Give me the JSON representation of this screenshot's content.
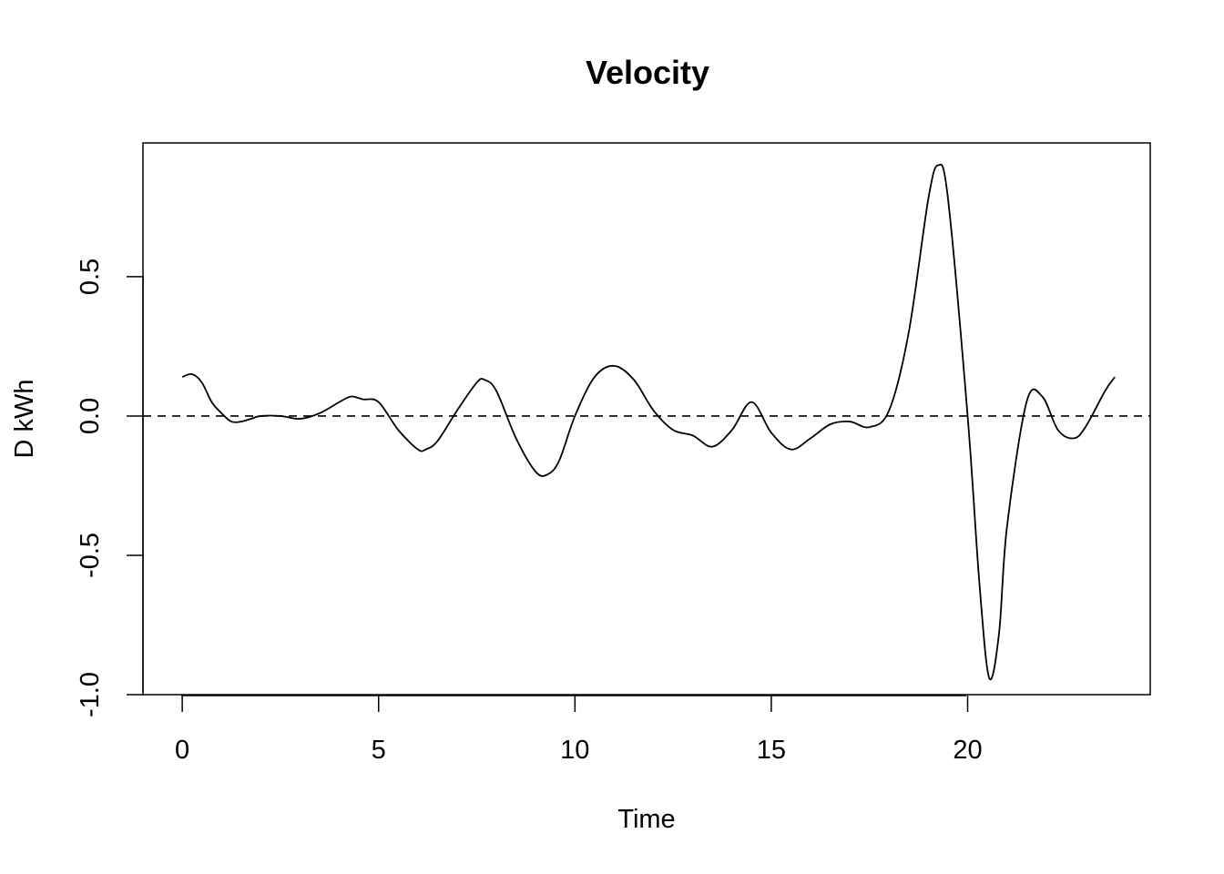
{
  "chart_data": {
    "type": "line",
    "title": "Velocity",
    "xlabel": "Time",
    "ylabel": "D kWh",
    "xlim": [
      -1,
      24.65
    ],
    "ylim": [
      -1.0,
      0.98
    ],
    "x_ticks": [
      0,
      5,
      10,
      15,
      20
    ],
    "x_tick_labels": [
      "0",
      "5",
      "10",
      "15",
      "20"
    ],
    "y_ticks": [
      -1.0,
      -0.5,
      0.0,
      0.5
    ],
    "y_tick_labels": [
      "-1.0",
      "-0.5",
      "0.0",
      "0.5"
    ],
    "grid": false,
    "reference_line": {
      "y": 0,
      "style": "dashed"
    },
    "series": [
      {
        "x": [
          0,
          0.25,
          0.5,
          0.75,
          1.0,
          1.25,
          1.5,
          1.75,
          2.0,
          2.5,
          3.0,
          3.5,
          4.0,
          4.3,
          4.6,
          5.0,
          5.5,
          6.0,
          6.2,
          6.5,
          7.0,
          7.5,
          7.7,
          8.0,
          8.5,
          9.0,
          9.3,
          9.6,
          10.0,
          10.5,
          11.0,
          11.5,
          12.0,
          12.5,
          13.0,
          13.5,
          14.0,
          14.5,
          15.0,
          15.5,
          16.0,
          16.5,
          17.0,
          17.5,
          18.0,
          18.5,
          19.0,
          19.25,
          19.5,
          20.0,
          20.3,
          20.55,
          20.8,
          21.0,
          21.5,
          21.9,
          22.3,
          22.7,
          23.0,
          23.5,
          23.75
        ],
        "y": [
          0.14,
          0.15,
          0.12,
          0.05,
          0.01,
          -0.02,
          -0.02,
          -0.01,
          0.0,
          0.0,
          -0.01,
          0.01,
          0.05,
          0.07,
          0.06,
          0.05,
          -0.05,
          -0.12,
          -0.12,
          -0.09,
          0.02,
          0.12,
          0.13,
          0.09,
          -0.08,
          -0.2,
          -0.21,
          -0.16,
          0.0,
          0.14,
          0.18,
          0.13,
          0.02,
          -0.05,
          -0.07,
          -0.11,
          -0.05,
          0.05,
          -0.06,
          -0.12,
          -0.08,
          -0.03,
          -0.02,
          -0.04,
          0.02,
          0.3,
          0.78,
          0.9,
          0.78,
          0.0,
          -0.6,
          -0.94,
          -0.78,
          -0.4,
          0.05,
          0.07,
          -0.05,
          -0.08,
          -0.04,
          0.09,
          0.14
        ]
      }
    ]
  }
}
